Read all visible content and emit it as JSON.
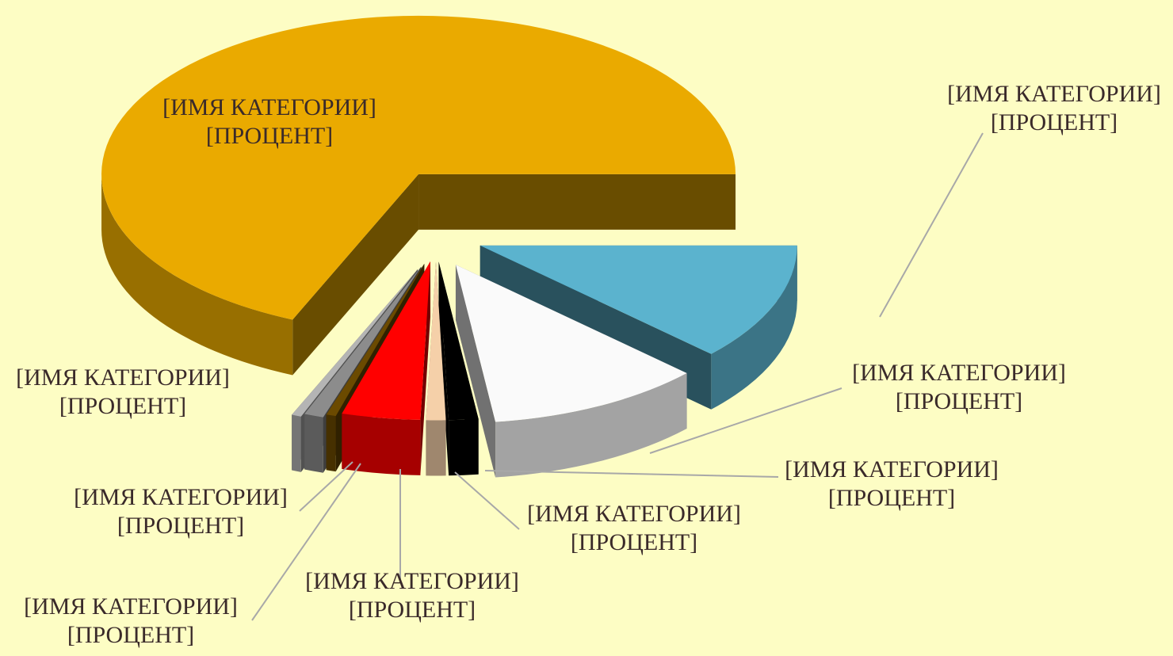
{
  "chart_data": {
    "type": "pie3d",
    "categories": [
      "[ИМЯ КАТЕГОРИИ]",
      "[ИМЯ КАТЕГОРИИ]",
      "[ИМЯ КАТЕГОРИИ]",
      "[ИМЯ КАТЕГОРИИ]",
      "[ИМЯ КАТЕГОРИИ]",
      "[ИМЯ КАТЕГОРИИ]",
      "[ИМЯ КАТЕГОРИИ]",
      "[ИМЯ КАТЕГОРИИ]",
      "[ИМЯ КАТЕГОРИИ]"
    ],
    "values": [
      68.5,
      12,
      11,
      1.5,
      1,
      4,
      0.5,
      1,
      0.5
    ],
    "value_labels": [
      "[ПРОЦЕНТ]",
      "[ПРОЦЕНТ]",
      "[ПРОЦЕНТ]",
      "[ПРОЦЕНТ]",
      "[ПРОЦЕНТ]",
      "[ПРОЦЕНТ]",
      "[ПРОЦЕНТ]",
      "[ПРОЦЕНТ]",
      "[ПРОЦЕНТ]"
    ],
    "colors": [
      "#EAAA00",
      "#5BB3CE",
      "#FAFAFA",
      "#000000",
      "#F5D0A9",
      "#FF0000",
      "#6B4A00",
      "#8C8C8C",
      "#B4B4B4"
    ]
  }
}
